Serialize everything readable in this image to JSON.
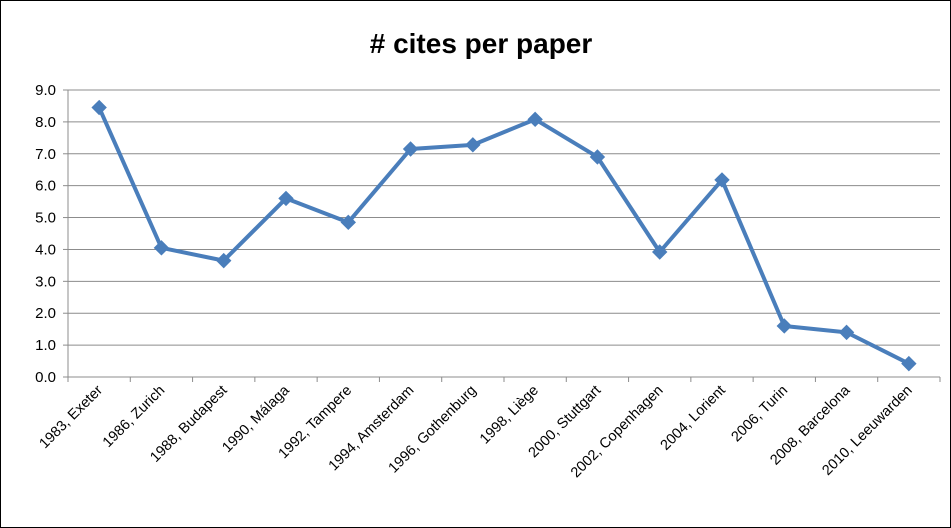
{
  "chart_data": {
    "type": "line",
    "title": "# cites per paper",
    "xlabel": "",
    "ylabel": "",
    "ylim": [
      0,
      9
    ],
    "yticks": [
      "0.0",
      "1.0",
      "2.0",
      "3.0",
      "4.0",
      "5.0",
      "6.0",
      "7.0",
      "8.0",
      "9.0"
    ],
    "grid": true,
    "categories": [
      "1983, Exeter",
      "1986, Zurich",
      "1988, Budapest",
      "1990, Málaga",
      "1992, Tampere",
      "1994, Amsterdam",
      "1996, Gothenburg",
      "1998, Liège",
      "2000, Stuttgart",
      "2002, Copenhagen",
      "2004, Lorient",
      "2006, Turin",
      "2008, Barcelona",
      "2010, Leeuwarden"
    ],
    "series": [
      {
        "values": [
          8.45,
          4.05,
          3.65,
          5.6,
          4.85,
          7.15,
          7.28,
          8.08,
          6.9,
          3.92,
          6.18,
          1.6,
          1.4,
          0.42
        ],
        "color": "#4A7EBB",
        "marker": "diamond"
      }
    ]
  }
}
